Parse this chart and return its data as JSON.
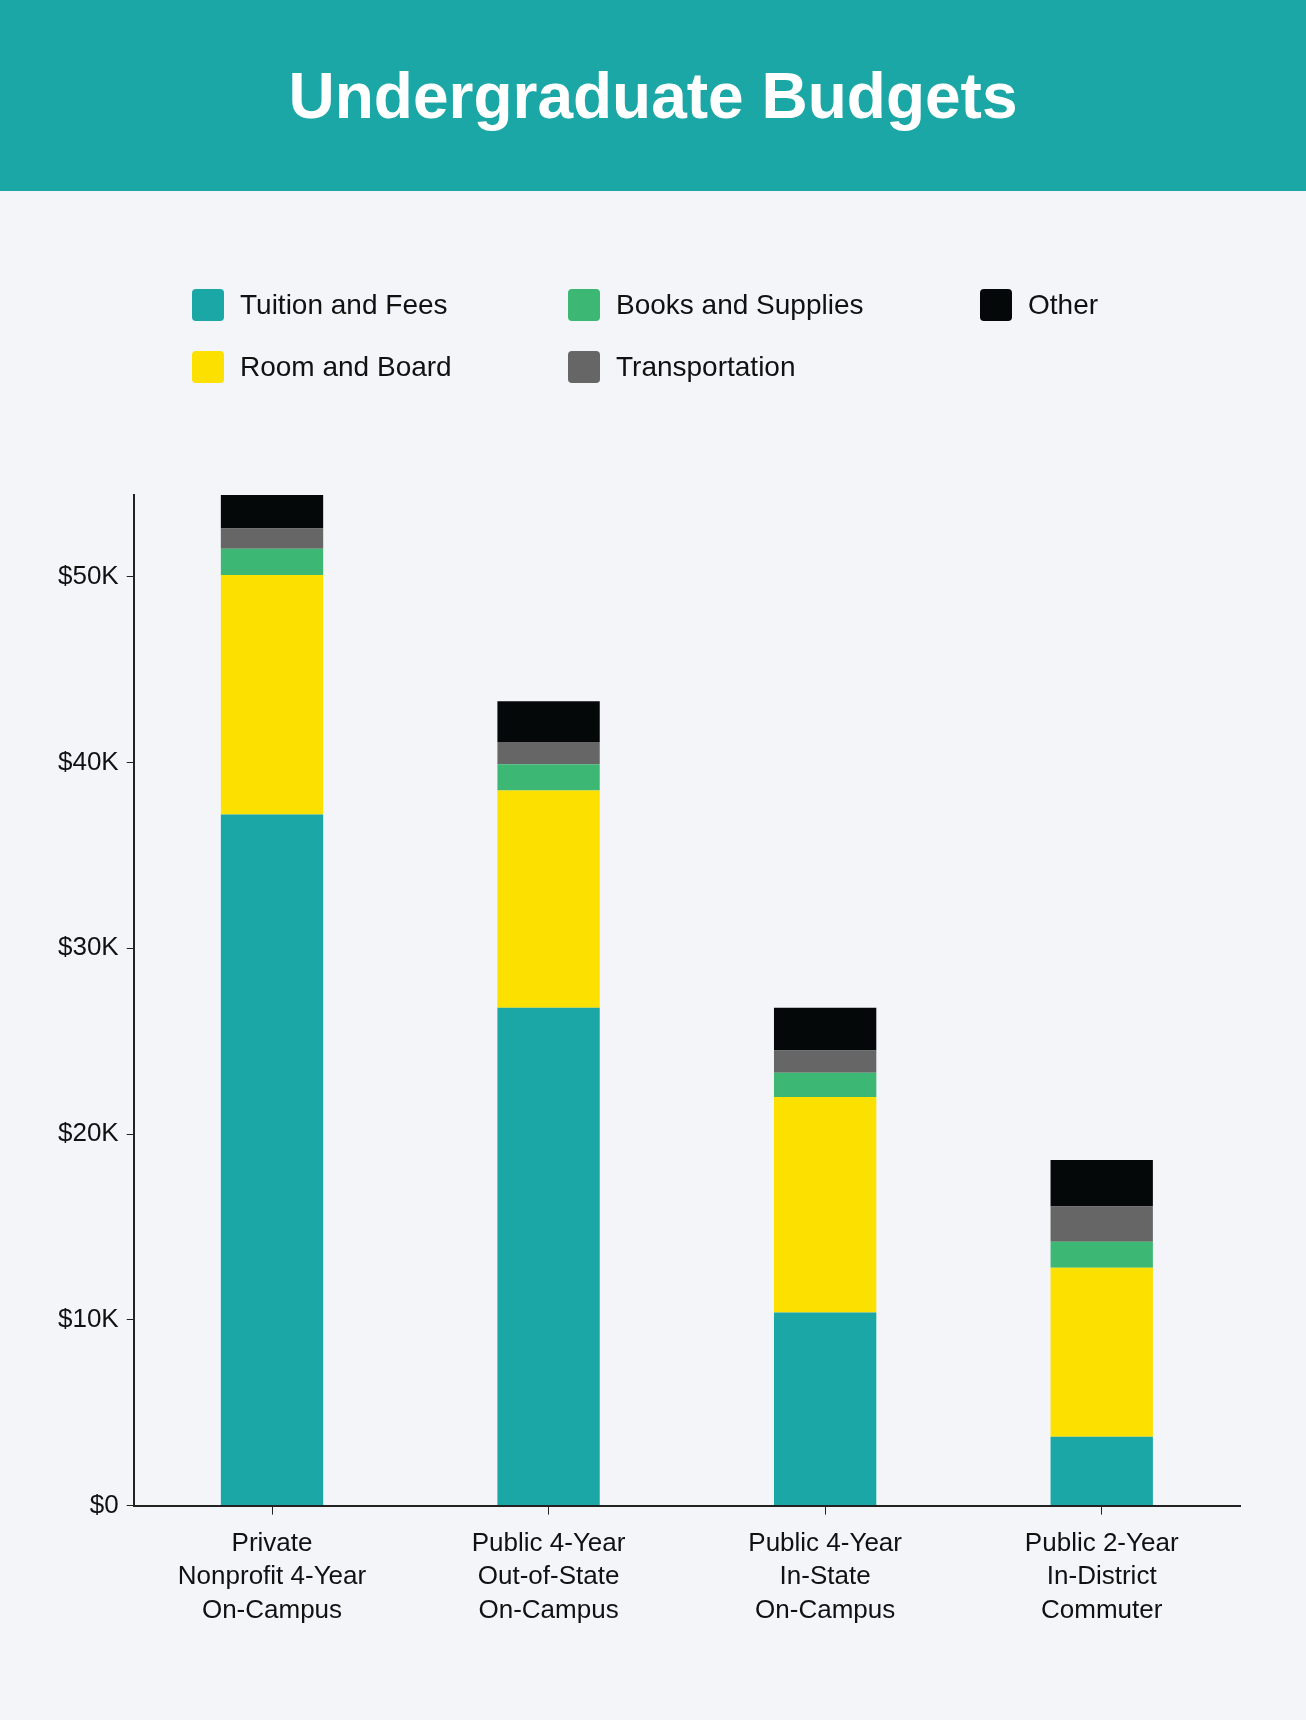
{
  "chart_data": {
    "type": "bar",
    "title": "Undergraduate Budgets",
    "categories": [
      "Private\nNonprofit 4-Year\nOn-Campus",
      "Public 4-Year\nOut-of-State\nOn-Campus",
      "Public 4-Year\nIn-State\nOn-Campus",
      "Public 2-Year\nIn-District\nCommuter"
    ],
    "series": [
      {
        "name": "Tuition and Fees",
        "color": "#1ba7a5",
        "values": [
          37200,
          26800,
          10400,
          3700
        ]
      },
      {
        "name": "Room and Board",
        "color": "#fce000",
        "values": [
          12900,
          11700,
          11600,
          9100
        ]
      },
      {
        "name": "Books and Supplies",
        "color": "#3db874",
        "values": [
          1400,
          1400,
          1300,
          1400
        ]
      },
      {
        "name": "Transportation",
        "color": "#666666",
        "values": [
          1100,
          1200,
          1200,
          1900
        ]
      },
      {
        "name": "Other",
        "color": "#050809",
        "values": [
          1800,
          2200,
          2300,
          2500
        ]
      }
    ],
    "stacked": true,
    "ylim": [
      0,
      54400
    ],
    "yticks": [
      {
        "value": 0,
        "label": "$0"
      },
      {
        "value": 10000,
        "label": "$10K"
      },
      {
        "value": 20000,
        "label": "$20K"
      },
      {
        "value": 30000,
        "label": "$30K"
      },
      {
        "value": 40000,
        "label": "$40K"
      },
      {
        "value": 50000,
        "label": "$50K"
      }
    ],
    "grid": false,
    "legend": "top"
  }
}
